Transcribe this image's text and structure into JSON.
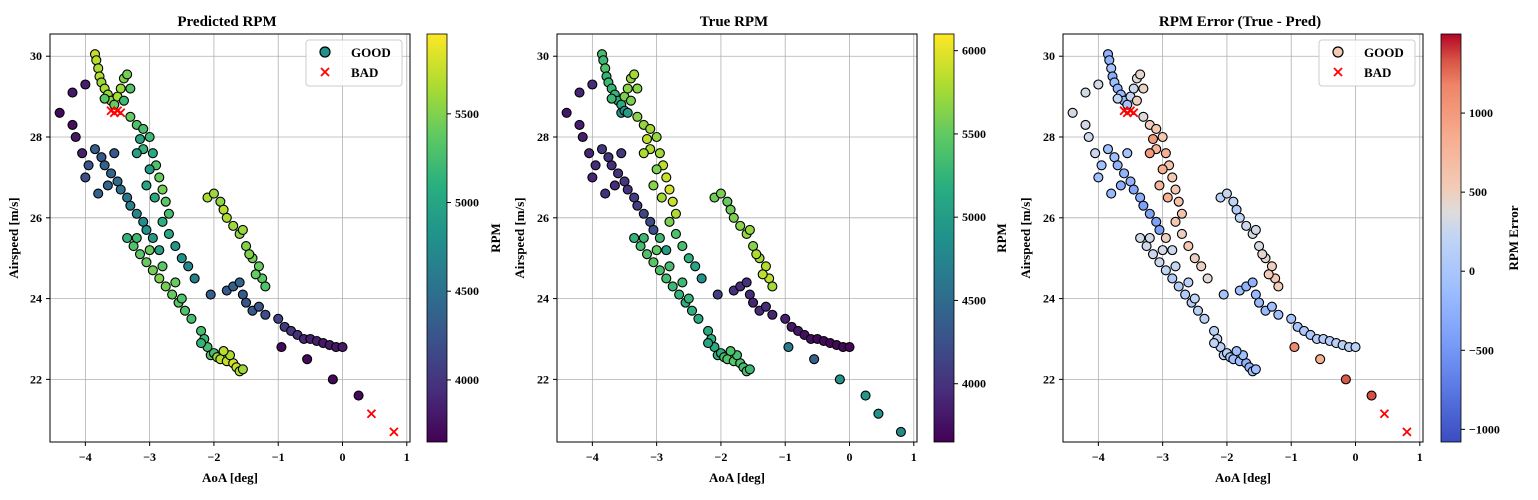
{
  "chart_data": [
    {
      "type": "scatter",
      "title": "Predicted RPM",
      "xlabel": "AoA [deg]",
      "ylabel": "Airspeed [m/s]",
      "xlim": [
        -4.55,
        1.05
      ],
      "ylim": [
        20.45,
        30.55
      ],
      "xticks": [
        -4,
        -3,
        -2,
        -1,
        0,
        1
      ],
      "yticks": [
        22,
        24,
        26,
        28,
        30
      ],
      "grid": true,
      "colormap": "viridis",
      "colorbar": {
        "label": "RPM",
        "range": [
          3650,
          5950
        ],
        "ticks": [
          4000,
          4500,
          5000,
          5500
        ]
      },
      "legend": {
        "placement": "top-right",
        "entries": [
          {
            "label": "GOOD",
            "marker": "circle"
          },
          {
            "label": "BAD",
            "marker": "x"
          }
        ]
      },
      "good_color_field": "pred",
      "bad_points": [
        [
          -3.55,
          28.6
        ],
        [
          -3.5,
          28.65
        ],
        [
          -3.45,
          28.6
        ],
        [
          -3.6,
          28.65
        ],
        [
          0.45,
          21.15
        ],
        [
          0.8,
          20.7
        ]
      ]
    },
    {
      "type": "scatter",
      "title": "True RPM",
      "xlabel": "AoA [deg]",
      "ylabel": "Airspeed [m/s]",
      "xlim": [
        -4.55,
        1.05
      ],
      "ylim": [
        20.45,
        30.55
      ],
      "xticks": [
        -4,
        -3,
        -2,
        -1,
        0,
        1
      ],
      "yticks": [
        22,
        24,
        26,
        28,
        30
      ],
      "grid": true,
      "colormap": "viridis",
      "colorbar": {
        "label": "RPM",
        "range": [
          3650,
          6100
        ],
        "ticks": [
          4000,
          4500,
          5000,
          5500,
          6000
        ]
      },
      "good_color_field": "true",
      "extra_points": [
        [
          -3.55,
          28.6,
          4950
        ],
        [
          -3.5,
          28.65,
          4900
        ],
        [
          -3.45,
          28.6,
          5000
        ],
        [
          0.45,
          21.15,
          4900
        ],
        [
          0.8,
          20.7,
          4800
        ]
      ]
    },
    {
      "type": "scatter",
      "title": "RPM Error (True - Pred)",
      "xlabel": "AoA [deg]",
      "ylabel": "Airspeed [m/s]",
      "xlim": [
        -4.55,
        1.05
      ],
      "ylim": [
        20.45,
        30.55
      ],
      "xticks": [
        -4,
        -3,
        -2,
        -1,
        0,
        1
      ],
      "yticks": [
        22,
        24,
        26,
        28,
        30
      ],
      "grid": true,
      "colormap": "coolwarm",
      "colorbar": {
        "label": "RPM Error",
        "range": [
          -1080,
          1500
        ],
        "ticks": [
          -1000,
          -500,
          0,
          500,
          1000
        ],
        "ticklabels": [
          "−1000",
          "−500",
          "0",
          "500",
          "1000"
        ]
      },
      "legend": {
        "placement": "top-right",
        "entries": [
          {
            "label": "GOOD",
            "marker": "circle"
          },
          {
            "label": "BAD",
            "marker": "x"
          }
        ]
      },
      "good_color_field": "err",
      "bad_points": [
        [
          -3.55,
          28.6
        ],
        [
          -3.5,
          28.65
        ],
        [
          -3.45,
          28.6
        ],
        [
          -3.6,
          28.65
        ],
        [
          0.45,
          21.15
        ],
        [
          0.8,
          20.7
        ]
      ]
    }
  ],
  "good_points": [
    [
      -3.85,
      30.05,
      5750,
      5350
    ],
    [
      -3.83,
      29.9,
      5700,
      5300
    ],
    [
      -3.8,
      29.7,
      5650,
      5400
    ],
    [
      -3.78,
      29.5,
      5700,
      5250
    ],
    [
      -3.75,
      29.35,
      5600,
      5300
    ],
    [
      -3.7,
      29.2,
      5650,
      5250
    ],
    [
      -3.65,
      29.05,
      5600,
      5250
    ],
    [
      -3.6,
      28.9,
      5550,
      5200
    ],
    [
      -3.55,
      28.8,
      5400,
      5150
    ],
    [
      -3.5,
      29.0,
      5650,
      5600
    ],
    [
      -3.45,
      29.2,
      5600,
      5650
    ],
    [
      -3.4,
      29.45,
      5500,
      5700
    ],
    [
      -3.35,
      29.55,
      5450,
      5750
    ],
    [
      -3.3,
      29.2,
      5300,
      5650
    ],
    [
      -3.4,
      28.9,
      5200,
      5600
    ],
    [
      -3.7,
      28.95,
      5350,
      5300
    ],
    [
      -3.3,
      28.5,
      5400,
      5650
    ],
    [
      -3.2,
      28.3,
      5300,
      5700
    ],
    [
      -3.1,
      28.2,
      5250,
      5750
    ],
    [
      -3.0,
      28.0,
      5200,
      5700
    ],
    [
      -3.1,
      27.7,
      5150,
      5800
    ],
    [
      -2.95,
      27.6,
      5050,
      5750
    ],
    [
      -2.9,
      27.3,
      5300,
      5850
    ],
    [
      -2.85,
      27.0,
      5400,
      5900
    ],
    [
      -2.8,
      26.7,
      5450,
      5950
    ],
    [
      -2.75,
      26.4,
      5350,
      5900
    ],
    [
      -2.7,
      26.1,
      5250,
      5800
    ],
    [
      -3.15,
      27.95,
      5000,
      5850
    ],
    [
      -3.0,
      27.2,
      4900,
      5600
    ],
    [
      -2.92,
      26.5,
      5050,
      5750
    ],
    [
      -3.2,
      27.6,
      4950,
      5800
    ],
    [
      -3.05,
      26.8,
      5000,
      5650
    ],
    [
      -2.8,
      25.9,
      5100,
      5600
    ],
    [
      -2.95,
      25.5,
      4900,
      5300
    ],
    [
      -2.7,
      25.6,
      5000,
      5400
    ],
    [
      -2.6,
      25.3,
      4850,
      5350
    ],
    [
      -2.5,
      25.0,
      4800,
      5200
    ],
    [
      -2.85,
      25.2,
      4950,
      5000
    ],
    [
      -2.4,
      24.8,
      4700,
      5100
    ],
    [
      -2.3,
      24.5,
      4650,
      4900
    ],
    [
      -3.85,
      27.7,
      4350,
      4050
    ],
    [
      -3.75,
      27.5,
      4300,
      4000
    ],
    [
      -3.7,
      27.3,
      4350,
      3950
    ],
    [
      -3.6,
      27.1,
      4400,
      4000
    ],
    [
      -3.5,
      26.9,
      4450,
      4050
    ],
    [
      -3.45,
      26.7,
      4500,
      4000
    ],
    [
      -3.35,
      26.5,
      4550,
      4100
    ],
    [
      -3.3,
      26.3,
      4650,
      4100
    ],
    [
      -3.2,
      26.1,
      4700,
      4150
    ],
    [
      -3.1,
      25.9,
      4750,
      4200
    ],
    [
      -3.05,
      25.7,
      4800,
      4250
    ],
    [
      -3.95,
      27.3,
      4250,
      3950
    ],
    [
      -4.0,
      27.0,
      4200,
      3900
    ],
    [
      -3.65,
      26.8,
      4400,
      3950
    ],
    [
      -3.8,
      26.6,
      4350,
      4000
    ],
    [
      -3.55,
      27.6,
      4300,
      4050
    ],
    [
      -3.35,
      25.5,
      5150,
      5250
    ],
    [
      -3.25,
      25.3,
      5300,
      5350
    ],
    [
      -3.15,
      25.1,
      5350,
      5400
    ],
    [
      -3.05,
      24.9,
      5400,
      5450
    ],
    [
      -2.95,
      24.7,
      5450,
      5400
    ],
    [
      -2.85,
      24.5,
      5500,
      5350
    ],
    [
      -2.75,
      24.3,
      5450,
      5300
    ],
    [
      -2.65,
      24.1,
      5400,
      5250
    ],
    [
      -2.55,
      23.9,
      5350,
      5200
    ],
    [
      -2.45,
      23.7,
      5300,
      5200
    ],
    [
      -2.35,
      23.5,
      5250,
      5150
    ],
    [
      -3.2,
      25.5,
      5200,
      5300
    ],
    [
      -3.0,
      25.2,
      5400,
      5500
    ],
    [
      -2.8,
      24.8,
      5350,
      5350
    ],
    [
      -2.6,
      24.4,
      5400,
      5300
    ],
    [
      -2.5,
      24.0,
      5300,
      5250
    ],
    [
      -2.2,
      23.2,
      5250,
      5150
    ],
    [
      -2.15,
      23.0,
      5200,
      5200
    ],
    [
      -2.1,
      22.8,
      5250,
      5150
    ],
    [
      -2.05,
      22.6,
      5300,
      5200
    ],
    [
      -2.2,
      22.9,
      5150,
      5100
    ],
    [
      -2.0,
      22.65,
      5250,
      5150
    ],
    [
      -1.95,
      22.55,
      5600,
      5350
    ],
    [
      -1.9,
      22.5,
      5700,
      5400
    ],
    [
      -1.8,
      22.45,
      5750,
      5450
    ],
    [
      -1.7,
      22.4,
      5800,
      5400
    ],
    [
      -1.65,
      22.3,
      5750,
      5350
    ],
    [
      -1.6,
      22.2,
      5700,
      5400
    ],
    [
      -1.75,
      22.6,
      5650,
      5350
    ],
    [
      -1.85,
      22.7,
      5700,
      5400
    ],
    [
      -1.55,
      22.25,
      5600,
      5300
    ],
    [
      -2.1,
      26.5,
      5650,
      5550
    ],
    [
      -2.0,
      26.6,
      5600,
      5600
    ],
    [
      -1.9,
      26.4,
      5550,
      5500
    ],
    [
      -1.85,
      26.2,
      5700,
      5550
    ],
    [
      -1.8,
      26.0,
      5650,
      5600
    ],
    [
      -1.7,
      25.8,
      5600,
      5650
    ],
    [
      -1.6,
      25.6,
      5550,
      5700
    ],
    [
      -1.5,
      25.3,
      5500,
      5650
    ],
    [
      -1.4,
      25.0,
      5450,
      5750
    ],
    [
      -1.3,
      24.8,
      5400,
      5800
    ],
    [
      -1.25,
      24.5,
      5350,
      5850
    ],
    [
      -1.2,
      24.3,
      5300,
      5750
    ],
    [
      -1.55,
      25.7,
      5600,
      5700
    ],
    [
      -1.45,
      25.1,
      5500,
      5800
    ],
    [
      -1.35,
      24.6,
      5400,
      5850
    ],
    [
      -1.8,
      24.2,
      4300,
      4000
    ],
    [
      -1.7,
      24.3,
      4350,
      3950
    ],
    [
      -1.6,
      24.4,
      4400,
      4000
    ],
    [
      -1.55,
      24.1,
      4300,
      3950
    ],
    [
      -1.5,
      23.9,
      4250,
      3900
    ],
    [
      -1.4,
      23.7,
      4300,
      3950
    ],
    [
      -1.3,
      23.8,
      4250,
      3950
    ],
    [
      -2.05,
      24.1,
      4350,
      4100
    ],
    [
      -1.2,
      23.6,
      4200,
      3900
    ],
    [
      -1.0,
      23.5,
      4100,
      3850
    ],
    [
      -0.9,
      23.3,
      4050,
      3800
    ],
    [
      -0.8,
      23.2,
      4000,
      3800
    ],
    [
      -0.7,
      23.1,
      3950,
      3750
    ],
    [
      -0.6,
      23.0,
      3900,
      3750
    ],
    [
      -0.5,
      23.0,
      3850,
      3700
    ],
    [
      -0.4,
      22.95,
      3850,
      3700
    ],
    [
      -0.3,
      22.9,
      3800,
      3700
    ],
    [
      -0.2,
      22.85,
      3800,
      3700
    ],
    [
      -0.1,
      22.8,
      3800,
      3700
    ],
    [
      0.0,
      22.8,
      3800,
      3700
    ],
    [
      -0.95,
      22.8,
      3700,
      4650
    ],
    [
      -0.55,
      22.5,
      3700,
      4400
    ],
    [
      -0.15,
      22.0,
      3700,
      4900
    ],
    [
      0.25,
      21.6,
      3700,
      4950
    ],
    [
      -4.4,
      28.6,
      3700,
      3800
    ],
    [
      -4.2,
      28.3,
      3750,
      3850
    ],
    [
      -4.15,
      28.0,
      3800,
      3850
    ],
    [
      -4.05,
      27.6,
      3850,
      3900
    ],
    [
      -4.2,
      29.1,
      3800,
      3900
    ],
    [
      -4.0,
      29.3,
      3850,
      3950
    ]
  ]
}
